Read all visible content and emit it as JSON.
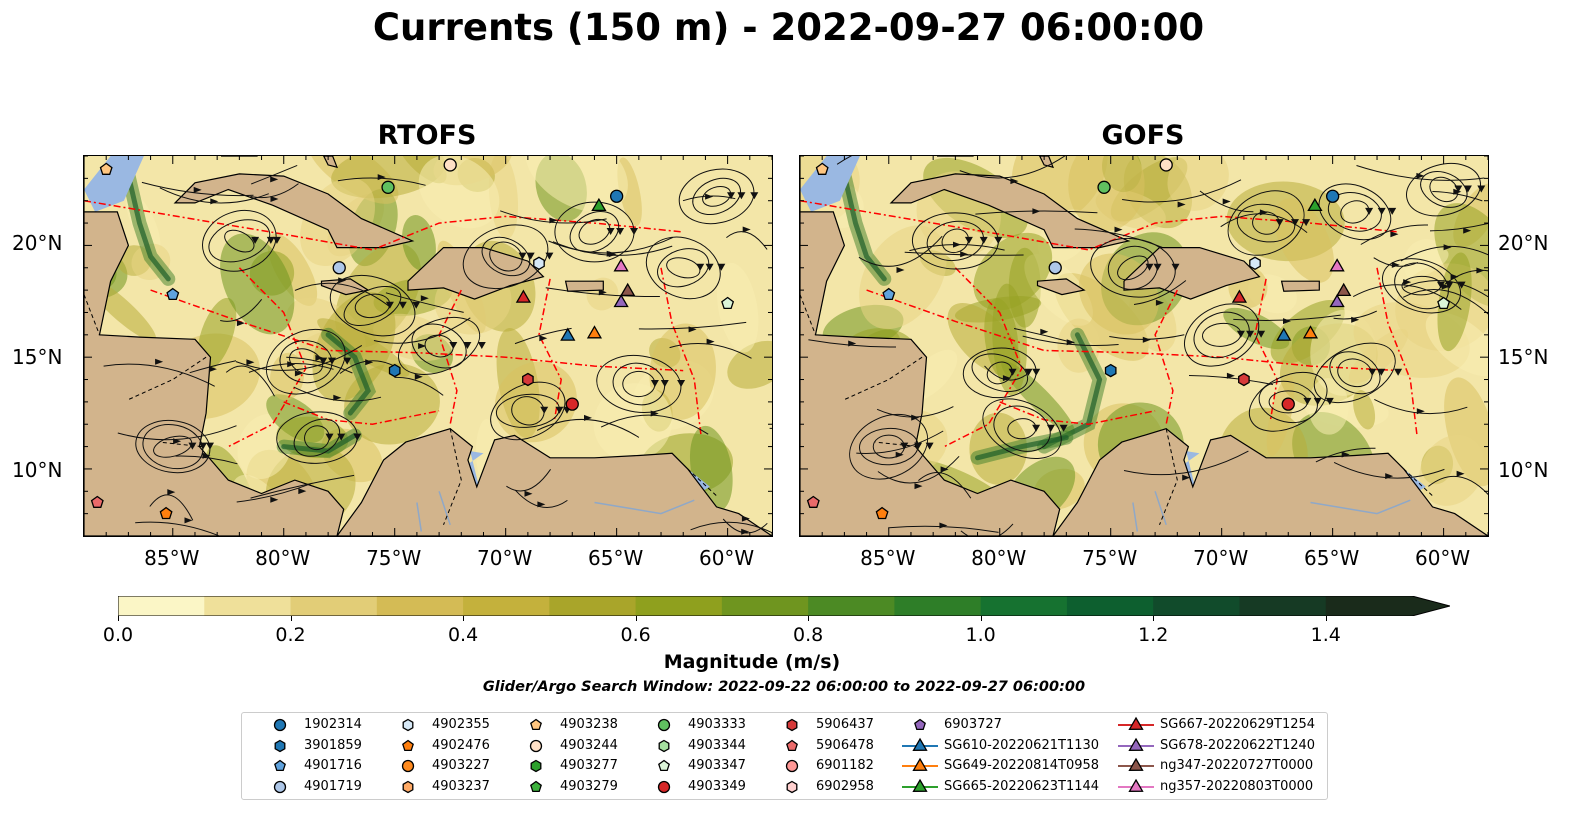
{
  "title": "Currents (150 m) - 2022-09-27 06:00:00",
  "panels": [
    {
      "name": "RTOFS"
    },
    {
      "name": "GOFS"
    }
  ],
  "x_ticks": [
    "85°W",
    "80°W",
    "75°W",
    "70°W",
    "65°W",
    "60°W"
  ],
  "y_ticks": [
    "20°N",
    "15°N",
    "10°N"
  ],
  "colorbar": {
    "label": "Magnitude (m/s)",
    "ticks": [
      "0.0",
      "0.2",
      "0.4",
      "0.6",
      "0.8",
      "1.0",
      "1.2",
      "1.4"
    ],
    "range": [
      0.0,
      1.5
    ],
    "colors": [
      "#fbf6c6",
      "#efe09a",
      "#e2cd77",
      "#d4bb55",
      "#c4b13c",
      "#a9a52a",
      "#8fa01e",
      "#6f951f",
      "#4c8a24",
      "#2e7e28",
      "#167230",
      "#0d5f2f",
      "#114b2b",
      "#163a24",
      "#1a2b1b"
    ]
  },
  "search_window": "Glider/Argo Search Window: 2022-09-22 06:00:00 to 2022-09-27 06:00:00",
  "map_colors": {
    "land": "#d2b48c",
    "water": "#9ab8e2",
    "eez": "#ff0000"
  },
  "legend": [
    {
      "label": "1902314",
      "marker": "circle",
      "color": "#1f77b4"
    },
    {
      "label": "3901859",
      "marker": "hexagon",
      "color": "#1f77b4"
    },
    {
      "label": "4901716",
      "marker": "pentagon",
      "color": "#5fa2dd"
    },
    {
      "label": "4901719",
      "marker": "circle",
      "color": "#aec7e8"
    },
    {
      "label": "4902355",
      "marker": "hexagon",
      "color": "#d6e8f6"
    },
    {
      "label": "4902476",
      "marker": "pentagon",
      "color": "#ff7f0e"
    },
    {
      "label": "4903227",
      "marker": "circle",
      "color": "#ff8a1e"
    },
    {
      "label": "4903237",
      "marker": "hexagon",
      "color": "#ffaa66"
    },
    {
      "label": "4903238",
      "marker": "pentagon",
      "color": "#ffc680"
    },
    {
      "label": "4903244",
      "marker": "circle",
      "color": "#ffe0c6"
    },
    {
      "label": "4903277",
      "marker": "hexagon",
      "color": "#2ca02c"
    },
    {
      "label": "4903279",
      "marker": "pentagon",
      "color": "#3cb03c"
    },
    {
      "label": "4903333",
      "marker": "circle",
      "color": "#60c060"
    },
    {
      "label": "4903344",
      "marker": "hexagon",
      "color": "#a6e0a0"
    },
    {
      "label": "4903347",
      "marker": "pentagon",
      "color": "#dcf5d8"
    },
    {
      "label": "4903349",
      "marker": "circle",
      "color": "#d62728"
    },
    {
      "label": "5906437",
      "marker": "hexagon",
      "color": "#d63a3a"
    },
    {
      "label": "5906478",
      "marker": "pentagon",
      "color": "#ea6a6a"
    },
    {
      "label": "6901182",
      "marker": "circle",
      "color": "#ff9896"
    },
    {
      "label": "6902958",
      "marker": "hexagon",
      "color": "#ffd0cf"
    },
    {
      "label": "6903727",
      "marker": "pentagon",
      "color": "#9467bd"
    },
    {
      "label": "SG610-20220621T1130",
      "marker": "triangle-line",
      "color": "#1f77b4"
    },
    {
      "label": "SG649-20220814T0958",
      "marker": "triangle-line",
      "color": "#ff7f0e"
    },
    {
      "label": "SG665-20220623T1144",
      "marker": "triangle-line",
      "color": "#2ca02c"
    },
    {
      "label": "SG667-20220629T1254",
      "marker": "triangle-line",
      "color": "#d62728"
    },
    {
      "label": "SG678-20220622T1240",
      "marker": "triangle-line",
      "color": "#9467bd"
    },
    {
      "label": "ng347-20220727T0000",
      "marker": "triangle-line",
      "color": "#8c564b"
    },
    {
      "label": "ng357-20220803T0000",
      "marker": "triangle-line",
      "color": "#e377c2"
    }
  ],
  "observations": [
    {
      "id": "1902314",
      "lon": -65.0,
      "lat": 22.2
    },
    {
      "id": "4901719",
      "lon": -77.5,
      "lat": 19.0
    },
    {
      "id": "4902355",
      "lon": -68.5,
      "lat": 19.2
    },
    {
      "id": "4903238",
      "lon": -88.0,
      "lat": 23.4
    },
    {
      "id": "4903333",
      "lon": -75.3,
      "lat": 22.6
    },
    {
      "id": "4903244",
      "lon": -72.5,
      "lat": 23.6
    },
    {
      "id": "4903347",
      "lon": -60.0,
      "lat": 17.4
    },
    {
      "id": "4901716",
      "lon": -85.0,
      "lat": 17.8
    },
    {
      "id": "3901859",
      "lon": -75.0,
      "lat": 14.4
    },
    {
      "id": "5906437",
      "lon": -69.0,
      "lat": 14.0
    },
    {
      "id": "4903349",
      "lon": -67.0,
      "lat": 12.9
    },
    {
      "id": "4902476",
      "lon": -85.3,
      "lat": 8.0
    },
    {
      "id": "5906478",
      "lon": -88.4,
      "lat": 8.5
    },
    {
      "id": "SG610-20220621T1130",
      "lon": -67.2,
      "lat": 16.0
    },
    {
      "id": "SG649-20220814T0958",
      "lon": -66.0,
      "lat": 16.1
    },
    {
      "id": "SG665-20220623T1144",
      "lon": -65.8,
      "lat": 21.8
    },
    {
      "id": "SG667-20220629T1254",
      "lon": -69.2,
      "lat": 17.7
    },
    {
      "id": "SG678-20220622T1240",
      "lon": -64.8,
      "lat": 17.5
    },
    {
      "id": "ng347-20220727T0000",
      "lon": -64.5,
      "lat": 18.0
    },
    {
      "id": "ng357-20220803T0000",
      "lon": -64.8,
      "lat": 19.1
    }
  ]
}
